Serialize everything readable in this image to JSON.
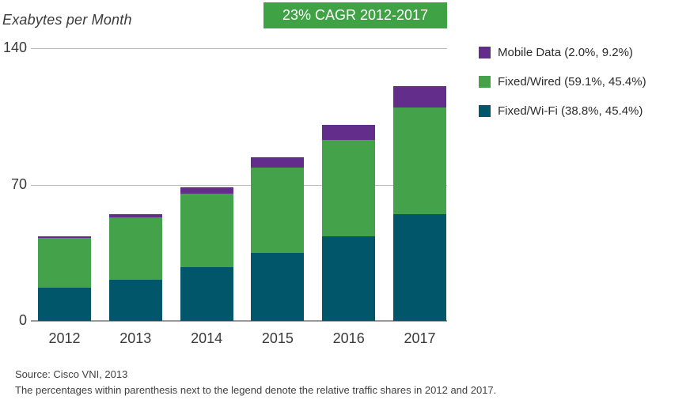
{
  "title": "Exabytes per Month",
  "banner": {
    "label": "23% CAGR 2012-2017",
    "background_color": "#3FA245",
    "text_color": "#FFFFFF"
  },
  "chart_data": {
    "type": "bar",
    "stacked": true,
    "title": "Exabytes per Month",
    "annotation": "23% CAGR 2012-2017",
    "categories": [
      "2012",
      "2013",
      "2014",
      "2015",
      "2016",
      "2017"
    ],
    "series": [
      {
        "name": "Fixed/Wi-Fi",
        "color": "#015669",
        "values": [
          16.9,
          21.0,
          27.6,
          35.0,
          43.6,
          54.8
        ]
      },
      {
        "name": "Fixed/Wired",
        "color": "#43A24A",
        "values": [
          25.8,
          32.0,
          37.8,
          43.8,
          49.2,
          54.8
        ]
      },
      {
        "name": "Mobile Data",
        "color": "#632E8B",
        "values": [
          0.9,
          1.8,
          3.2,
          5.2,
          8.0,
          11.1
        ]
      }
    ],
    "totals": [
      43.6,
      54.8,
      68.6,
      84.0,
      100.8,
      120.7
    ],
    "ylabel": "Exabytes per Month",
    "xlabel": "",
    "ylim": [
      0,
      140
    ],
    "yticks": [
      0,
      70,
      140
    ],
    "grid": true,
    "legend_position": "right",
    "gridline_color": "#b9b9b9",
    "axis_color": "#9a9a9a"
  },
  "legend": {
    "items": [
      {
        "label": "Mobile Data (2.0%, 9.2%)",
        "color": "#632E8B"
      },
      {
        "label": "Fixed/Wired (59.1%, 45.4%)",
        "color": "#43A24A"
      },
      {
        "label": "Fixed/Wi-Fi (38.8%, 45.4%)",
        "color": "#015669"
      }
    ]
  },
  "footer": {
    "source": "Source: Cisco VNI, 2013",
    "note": "The percentages within parenthesis next to the legend denote the relative traffic shares in 2012 and 2017."
  }
}
